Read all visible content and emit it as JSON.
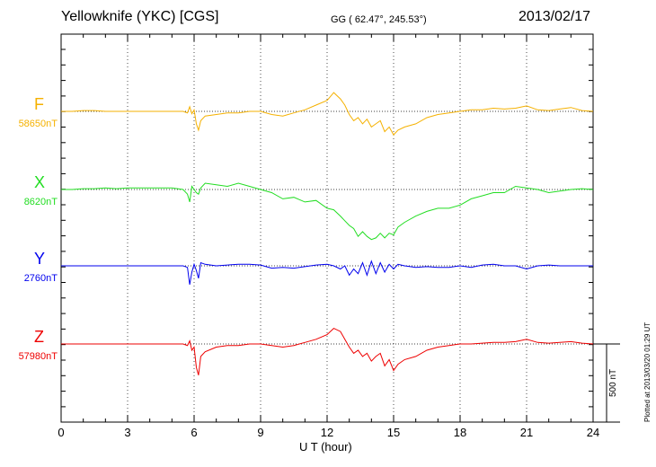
{
  "header": {
    "title": "Yellowknife (YKC)  [CGS]",
    "coords": "GG ( 62.47°, 245.53°)",
    "date": "2013/02/17"
  },
  "footer": {
    "plotted": "Plotted at 2013/03/20 01:29 UT"
  },
  "chart_data": {
    "type": "line",
    "title": "Yellowknife (YKC)  [CGS]",
    "xlabel": "U T (hour)",
    "ylabel": "",
    "xlim": [
      0,
      24
    ],
    "x_ticks": [
      0,
      3,
      6,
      9,
      12,
      15,
      18,
      21,
      24
    ],
    "x_tick_labels": [
      "0",
      "3",
      "6",
      "9",
      "12",
      "15",
      "18",
      "21",
      "24"
    ],
    "grid": true,
    "scale_bar": {
      "value": 500,
      "label": "500 nT"
    },
    "x": [
      0,
      0.5,
      1,
      1.5,
      2,
      2.5,
      3,
      3.5,
      4,
      4.5,
      5,
      5.5,
      5.7,
      5.8,
      5.9,
      6.0,
      6.1,
      6.2,
      6.3,
      6.5,
      7,
      7.5,
      8,
      8.5,
      9,
      9.5,
      10,
      10.5,
      11,
      11.5,
      12,
      12.3,
      12.6,
      12.8,
      13,
      13.2,
      13.4,
      13.6,
      13.8,
      14,
      14.2,
      14.4,
      14.6,
      14.8,
      15,
      15.2,
      15.5,
      16,
      16.5,
      17,
      17.5,
      18,
      18.5,
      19,
      19.5,
      20,
      20.5,
      21,
      21.5,
      22,
      22.5,
      23,
      23.5,
      24
    ],
    "series": [
      {
        "name": "F",
        "baseline": "58650nT",
        "color": "#f5b100",
        "values": [
          0,
          0,
          5,
          5,
          0,
          0,
          0,
          0,
          0,
          0,
          0,
          0,
          -10,
          30,
          -15,
          10,
          -80,
          -120,
          -60,
          -30,
          -20,
          -10,
          -10,
          0,
          0,
          -20,
          -30,
          -10,
          10,
          40,
          70,
          120,
          80,
          40,
          -20,
          -60,
          -40,
          -80,
          -50,
          -100,
          -80,
          -60,
          -130,
          -100,
          -150,
          -120,
          -100,
          -80,
          -40,
          -20,
          -10,
          0,
          10,
          10,
          20,
          15,
          20,
          35,
          10,
          5,
          15,
          25,
          5,
          0
        ]
      },
      {
        "name": "X",
        "baseline": "8620nT",
        "color": "#22dd22",
        "values": [
          0,
          0,
          5,
          5,
          10,
          5,
          10,
          10,
          10,
          10,
          10,
          0,
          -30,
          -80,
          20,
          0,
          -20,
          -30,
          10,
          40,
          30,
          20,
          40,
          20,
          0,
          -20,
          -60,
          -50,
          -80,
          -70,
          -120,
          -130,
          -170,
          -200,
          -230,
          -250,
          -300,
          -270,
          -300,
          -320,
          -310,
          -280,
          -310,
          -280,
          -290,
          -240,
          -210,
          -170,
          -140,
          -120,
          -120,
          -100,
          -60,
          -40,
          -20,
          -20,
          20,
          10,
          0,
          -20,
          -10,
          0,
          5,
          0
        ]
      },
      {
        "name": "Y",
        "baseline": "2760nT",
        "color": "#0000ee",
        "values": [
          0,
          0,
          0,
          0,
          0,
          0,
          0,
          0,
          0,
          0,
          0,
          0,
          -10,
          -120,
          -40,
          10,
          -30,
          -80,
          20,
          10,
          0,
          5,
          10,
          10,
          5,
          -15,
          -10,
          -15,
          -5,
          5,
          10,
          0,
          -20,
          0,
          -60,
          -20,
          -50,
          20,
          -60,
          30,
          -50,
          20,
          -40,
          10,
          -20,
          10,
          0,
          -10,
          -5,
          -10,
          -10,
          0,
          -10,
          5,
          10,
          0,
          0,
          -20,
          0,
          5,
          0,
          0,
          0,
          0
        ]
      },
      {
        "name": "Z",
        "baseline": "57980nT",
        "color": "#ee0000",
        "values": [
          0,
          0,
          0,
          0,
          0,
          0,
          0,
          0,
          0,
          0,
          0,
          0,
          -10,
          20,
          -40,
          -20,
          -150,
          -200,
          -80,
          -50,
          -20,
          -10,
          -10,
          0,
          0,
          -10,
          -20,
          -10,
          10,
          30,
          60,
          100,
          80,
          30,
          -20,
          -60,
          -40,
          -80,
          -60,
          -110,
          -80,
          -60,
          -140,
          -100,
          -170,
          -130,
          -100,
          -80,
          -40,
          -20,
          -10,
          0,
          0,
          5,
          10,
          10,
          15,
          30,
          10,
          5,
          10,
          15,
          5,
          0
        ]
      }
    ]
  }
}
